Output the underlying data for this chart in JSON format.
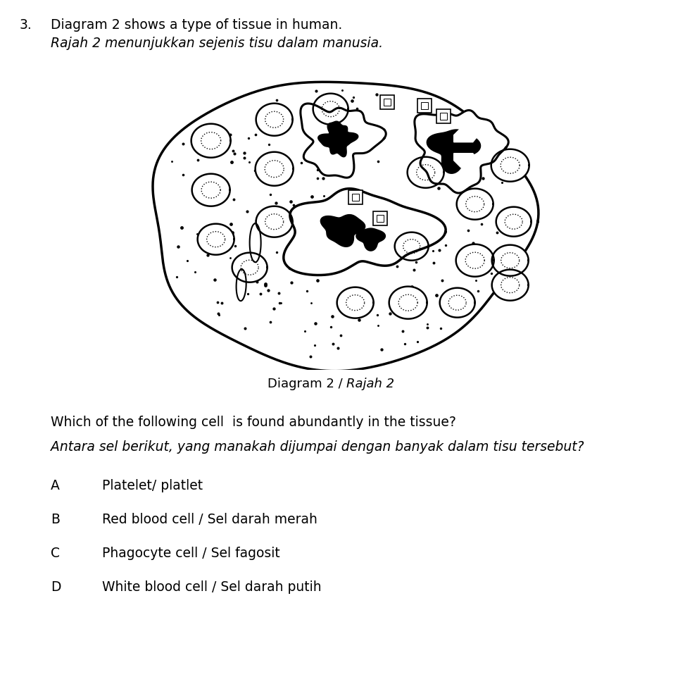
{
  "question_number": "3.",
  "title_en": "Diagram 2 shows a type of tissue in human.",
  "title_ms": "Rajah 2 menunjukkan sejenis tisu dalam manusia.",
  "diagram_label_normal": "Diagram 2 / ",
  "diagram_label_italic": "Rajah 2",
  "question_en": "Which of the following cell  is found abundantly in the tissue?",
  "question_ms": "Antara sel berikut, yang manakah dijumpai dengan banyak dalam tisu tersebut?",
  "options": [
    {
      "letter": "A",
      "text": "Platelet/ platlet"
    },
    {
      "letter": "B",
      "text": "Red blood cell / Sel darah merah"
    },
    {
      "letter": "C",
      "text": "Phagocyte cell / Sel fagosit"
    },
    {
      "letter": "D",
      "text": "White blood cell / Sel darah putih"
    }
  ],
  "bg_color": "#ffffff",
  "text_color": "#000000",
  "fig_width": 9.83,
  "fig_height": 9.88
}
